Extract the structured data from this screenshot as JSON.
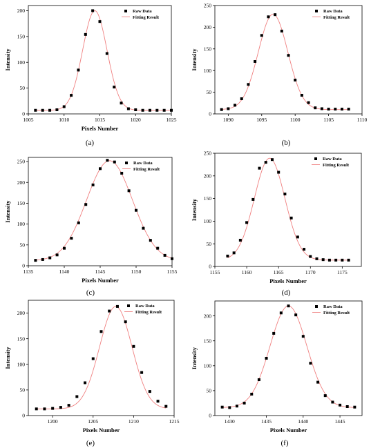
{
  "colors": {
    "points": "#000000",
    "fit": "#f08080",
    "axis": "#000000",
    "background": "#ffffff"
  },
  "chart_data": [
    {
      "panel": "(a)",
      "type": "scatter",
      "xlabel": "Pixels Number",
      "ylabel": "Intensity",
      "xlim": [
        1005,
        1025
      ],
      "ylim": [
        0,
        210
      ],
      "xticks": [
        1005,
        1010,
        1015,
        1020,
        1025
      ],
      "yticks": [
        0,
        50,
        100,
        150,
        200
      ],
      "legend": {
        "placement": "top-right",
        "entries": [
          "Raw Data",
          "Fitting Result"
        ]
      },
      "series": [
        {
          "name": "Raw Data",
          "kind": "points",
          "x": [
            1006,
            1007,
            1008,
            1009,
            1010,
            1011,
            1012,
            1013,
            1014,
            1015,
            1016,
            1017,
            1018,
            1019,
            1020,
            1021,
            1022,
            1023,
            1024,
            1025
          ],
          "y": [
            7,
            7,
            7,
            8,
            14,
            36,
            85,
            154,
            200,
            179,
            117,
            52,
            21,
            10,
            8,
            7,
            7,
            7,
            7,
            7
          ]
        },
        {
          "name": "Fitting Result",
          "kind": "gaussian",
          "base": 7,
          "amp": 193,
          "center": 1014.3,
          "sigma": 1.7,
          "range": [
            1006,
            1025
          ]
        }
      ]
    },
    {
      "panel": "(b)",
      "type": "scatter",
      "xlabel": "",
      "ylabel": "Intensity",
      "xlim": [
        1088,
        1110
      ],
      "ylim": [
        0,
        250
      ],
      "xticks": [
        1090,
        1095,
        1100,
        1105,
        1110
      ],
      "yticks": [
        0,
        50,
        100,
        150,
        200,
        250
      ],
      "legend": {
        "placement": "top-right",
        "entries": [
          "Raw Data",
          "Fitting Result"
        ]
      },
      "series": [
        {
          "name": "Raw Data",
          "kind": "points",
          "x": [
            1089,
            1090,
            1091,
            1092,
            1093,
            1094,
            1095,
            1096,
            1097,
            1098,
            1099,
            1100,
            1101,
            1102,
            1103,
            1104,
            1105,
            1106,
            1107,
            1108
          ],
          "y": [
            10,
            12,
            20,
            35,
            68,
            121,
            181,
            224,
            229,
            191,
            135,
            78,
            43,
            26,
            14,
            12,
            11,
            11,
            11,
            11
          ]
        },
        {
          "name": "Fitting Result",
          "kind": "gaussian",
          "base": 10,
          "amp": 220,
          "center": 1096.7,
          "sigma": 2.2,
          "range": [
            1089,
            1108
          ]
        }
      ]
    },
    {
      "panel": "(c)",
      "type": "scatter",
      "xlabel": "Pixels Number",
      "ylabel": "Intensity",
      "xlim": [
        1135,
        1155
      ],
      "ylim": [
        0,
        260
      ],
      "xticks": [
        1135,
        1140,
        1145,
        1150,
        1155
      ],
      "yticks": [
        0,
        50,
        100,
        150,
        200,
        250
      ],
      "legend": {
        "placement": "top-right",
        "entries": [
          "Raw Data",
          "Fitting Result"
        ]
      },
      "series": [
        {
          "name": "Raw Data",
          "kind": "points",
          "x": [
            1136,
            1137,
            1138,
            1139,
            1140,
            1141,
            1142,
            1143,
            1144,
            1145,
            1146,
            1147,
            1148,
            1149,
            1150,
            1151,
            1152,
            1153,
            1154,
            1155
          ],
          "y": [
            13,
            15,
            19,
            26,
            42,
            66,
            103,
            147,
            194,
            233,
            253,
            249,
            222,
            180,
            133,
            90,
            61,
            42,
            25,
            17
          ]
        },
        {
          "name": "Fitting Result",
          "kind": "gaussian",
          "base": 12,
          "amp": 240,
          "center": 1146.3,
          "sigma": 3.2,
          "range": [
            1136,
            1155
          ]
        }
      ]
    },
    {
      "panel": "(d)",
      "type": "scatter",
      "xlabel": "Pixels Number",
      "ylabel": "Intensity",
      "xlim": [
        1155,
        1178
      ],
      "ylim": [
        0,
        250
      ],
      "xticks": [
        1155,
        1160,
        1165,
        1170,
        1175
      ],
      "yticks": [
        0,
        50,
        100,
        150,
        200,
        250
      ],
      "legend": {
        "placement": "top-right",
        "entries": [
          "Raw Data",
          "Fitting Result"
        ]
      },
      "series": [
        {
          "name": "Raw Data",
          "kind": "points",
          "x": [
            1157,
            1158,
            1159,
            1160,
            1161,
            1162,
            1163,
            1164,
            1165,
            1166,
            1167,
            1168,
            1169,
            1170,
            1171,
            1172,
            1173,
            1174,
            1175,
            1176
          ],
          "y": [
            23,
            30,
            58,
            97,
            148,
            217,
            230,
            236,
            208,
            160,
            107,
            65,
            38,
            22,
            17,
            15,
            14,
            14,
            14,
            14
          ]
        },
        {
          "name": "Fitting Result",
          "kind": "gaussian",
          "base": 14,
          "amp": 225,
          "center": 1163.6,
          "sigma": 2.4,
          "range": [
            1157,
            1176
          ]
        }
      ]
    },
    {
      "panel": "(e)",
      "type": "scatter",
      "xlabel": "Pixels Number",
      "ylabel": "Intensity",
      "xlim": [
        1197,
        1215
      ],
      "ylim": [
        0,
        225
      ],
      "xticks": [
        1200,
        1205,
        1210,
        1215
      ],
      "yticks": [
        0,
        50,
        100,
        150,
        200
      ],
      "legend": {
        "placement": "top-right",
        "entries": [
          "Raw Data",
          "Fitting Result"
        ]
      },
      "series": [
        {
          "name": "Raw Data",
          "kind": "points",
          "x": [
            1198,
            1199,
            1200,
            1201,
            1202,
            1203,
            1204,
            1205,
            1206,
            1207,
            1208,
            1209,
            1210,
            1211,
            1212,
            1213,
            1214
          ],
          "y": [
            13,
            13,
            14,
            16,
            20,
            37,
            64,
            111,
            164,
            204,
            213,
            183,
            135,
            84,
            47,
            28,
            18
          ]
        },
        {
          "name": "Fitting Result",
          "kind": "gaussian",
          "base": 13,
          "amp": 200,
          "center": 1207.8,
          "sigma": 2.0,
          "range": [
            1198,
            1214
          ]
        }
      ]
    },
    {
      "panel": "(f)",
      "type": "scatter",
      "xlabel": "Pixels Number",
      "ylabel": "Intensity",
      "xlim": [
        1428,
        1448
      ],
      "ylim": [
        0,
        230
      ],
      "xticks": [
        1430,
        1435,
        1440,
        1445
      ],
      "yticks": [
        0,
        50,
        100,
        150,
        200
      ],
      "legend": {
        "placement": "top-right",
        "entries": [
          "Raw Data",
          "Fitting Result"
        ]
      },
      "series": [
        {
          "name": "Raw Data",
          "kind": "points",
          "x": [
            1429,
            1430,
            1431,
            1432,
            1433,
            1434,
            1435,
            1436,
            1437,
            1438,
            1439,
            1440,
            1441,
            1442,
            1443,
            1444,
            1445,
            1446,
            1447
          ],
          "y": [
            17,
            16,
            19,
            25,
            43,
            72,
            115,
            165,
            206,
            220,
            202,
            159,
            105,
            67,
            40,
            27,
            21,
            18,
            17
          ]
        },
        {
          "name": "Fitting Result",
          "kind": "gaussian",
          "base": 16,
          "amp": 204,
          "center": 1438.0,
          "sigma": 2.5,
          "range": [
            1429,
            1447
          ]
        }
      ]
    }
  ]
}
